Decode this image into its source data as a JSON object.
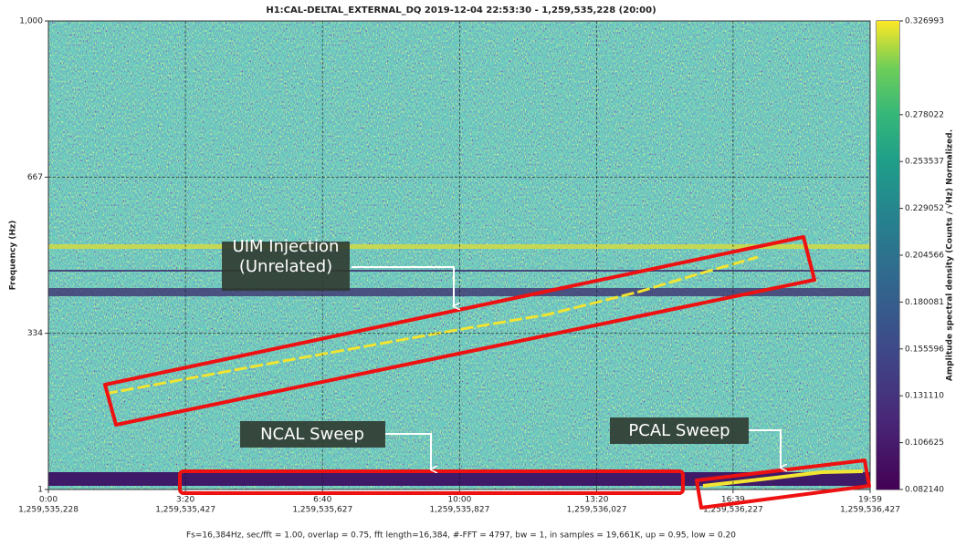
{
  "chart_data": {
    "type": "spectrogram",
    "title": "H1:CAL-DELTAL_EXTERNAL_DQ 2019-12-04 22:53:30 - 1,259,535,228 (20:00)",
    "ylabel": "Frequency (Hz)",
    "xlim": [
      0,
      1199
    ],
    "xticks": [
      {
        "value": 0,
        "label": "0:00",
        "gps_label": "1,259,535,228"
      },
      {
        "value": 200,
        "label": "3:20",
        "gps_label": "1,259,535,427"
      },
      {
        "value": 400,
        "label": "6:40",
        "gps_label": "1,259,535,627"
      },
      {
        "value": 600,
        "label": "10:00",
        "gps_label": "1,259,535,827"
      },
      {
        "value": 800,
        "label": "13:20",
        "gps_label": "1,259,536,027"
      },
      {
        "value": 999,
        "label": "16:39",
        "gps_label": "1,259,536,227"
      },
      {
        "value": 1199,
        "label": "19:59",
        "gps_label": "1,259,536,427"
      }
    ],
    "ylim": [
      1,
      1000
    ],
    "yticks": [
      1,
      334,
      667,
      {
        "value": 1000,
        "label": "1,000"
      }
    ],
    "grid": true,
    "colorbar": {
      "label": "Amplitude spectral density (Counts / √Hz) Normalized.",
      "lim": [
        0.08214,
        0.326993
      ],
      "ticks": [
        {
          "value": 0.08214,
          "label": "0.082140"
        },
        {
          "value": 0.106625,
          "label": "0.106625"
        },
        {
          "value": 0.13111,
          "label": "0.131110"
        },
        {
          "value": 0.155596,
          "label": "0.155596"
        },
        {
          "value": 0.180081,
          "label": "0.180081"
        },
        {
          "value": 0.204566,
          "label": "0.204566"
        },
        {
          "value": 0.229052,
          "label": "0.229052"
        },
        {
          "value": 0.253537,
          "label": "0.253537"
        },
        {
          "value": 0.278022,
          "label": "0.278022"
        },
        {
          "value": 0.326993,
          "label": "0.326993"
        }
      ]
    },
    "annotations": [
      {
        "lines": [
          "UIM Injection",
          "(Unrelated)"
        ]
      },
      {
        "lines": [
          "NCAL Sweep"
        ]
      },
      {
        "lines": [
          "PCAL Sweep"
        ]
      }
    ],
    "footer": "Fs=16,384Hz, sec/fft = 1.00, overlap = 0.75, fft length=16,384, #-FFT = 4797, bw = 1, in samples = 19,661K, up = 0.95, low = 0.20"
  }
}
